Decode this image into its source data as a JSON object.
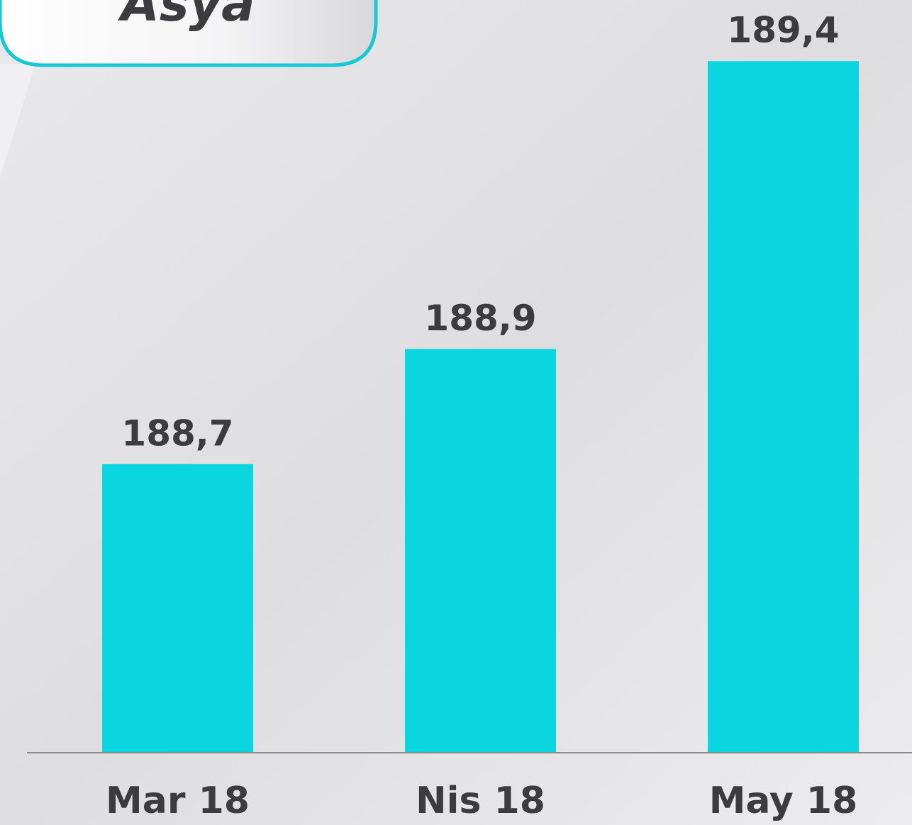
{
  "chart_data": {
    "type": "bar",
    "title": "Asya",
    "categories": [
      "Mar 18",
      "Nis 18",
      "May 18"
    ],
    "values": [
      188.7,
      188.9,
      189.4
    ],
    "value_labels": [
      "188,7",
      "188,9",
      "189,4"
    ],
    "color": "#0bd5df",
    "ylim": [
      188.2,
      189.5
    ]
  }
}
